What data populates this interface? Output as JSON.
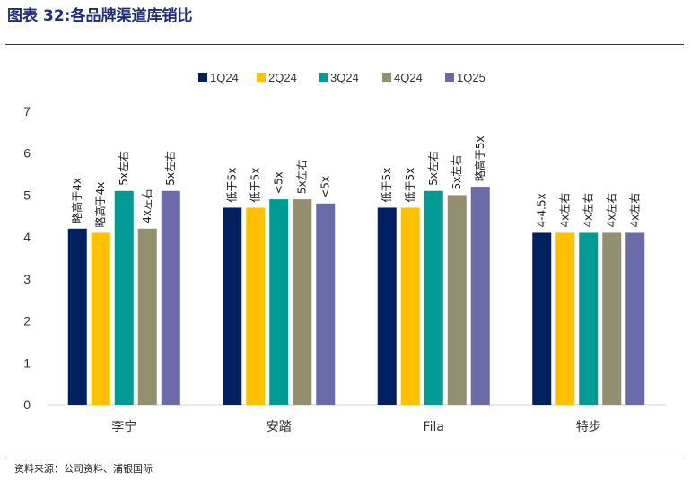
{
  "header": {
    "title_prefix": "图表",
    "title_num": "32:",
    "title_text": "各品牌渠道库销比"
  },
  "footer": {
    "source": "资料来源：公司资料、浦银国际"
  },
  "chart_data": {
    "type": "bar",
    "title": "",
    "xlabel": "",
    "ylabel": "",
    "categories": [
      "李宁",
      "安踏",
      "Fila",
      "特步"
    ],
    "ylim": [
      0,
      7
    ],
    "yticks": [
      0,
      1,
      2,
      3,
      4,
      5,
      6,
      7
    ],
    "grid": false,
    "legend_position": "top",
    "series": [
      {
        "name": "1Q24",
        "color": "#002060",
        "values": [
          4.2,
          4.7,
          4.7,
          4.1
        ],
        "labels": [
          "略高于4x",
          "低于5x",
          "低于5x",
          "4-4.5x"
        ]
      },
      {
        "name": "2Q24",
        "color": "#FFC000",
        "values": [
          4.1,
          4.7,
          4.7,
          4.1
        ],
        "labels": [
          "略高于4x",
          "低于5x",
          "低于5x",
          "4x左右"
        ]
      },
      {
        "name": "3Q24",
        "color": "#009B94",
        "values": [
          5.1,
          4.9,
          5.1,
          4.1
        ],
        "labels": [
          "5x左右",
          "<5x",
          "5x左右",
          "4x左右"
        ]
      },
      {
        "name": "4Q24",
        "color": "#938F6F",
        "values": [
          4.2,
          4.9,
          5.0,
          4.1
        ],
        "labels": [
          "4x左右",
          "5x左右",
          "5x左右",
          "4x左右"
        ]
      },
      {
        "name": "1Q25",
        "color": "#6A6BA8",
        "values": [
          5.1,
          4.8,
          5.2,
          4.1
        ],
        "labels": [
          "5x左右",
          "<5x",
          "略高于5x",
          "4x左右"
        ]
      }
    ]
  }
}
